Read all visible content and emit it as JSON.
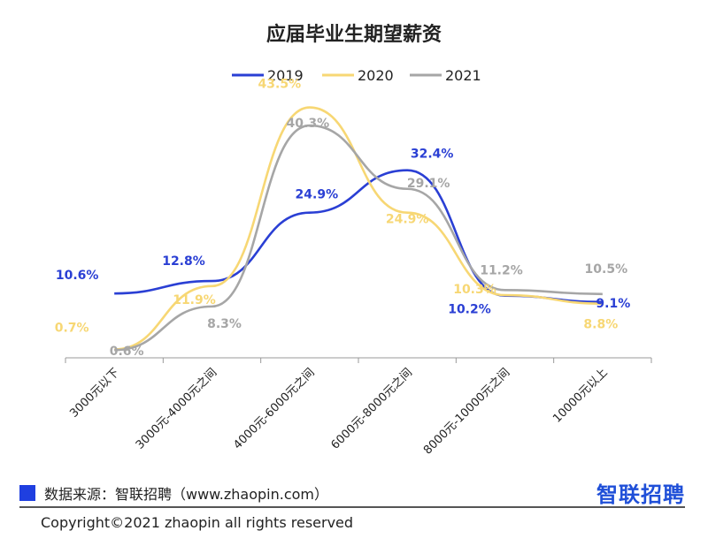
{
  "chart_data": {
    "type": "line",
    "title": "应届毕业生期望薪资",
    "categories": [
      "3000元以下",
      "3000元-4000元之间",
      "4000元-6000元之间",
      "6000元-8000元之间",
      "8000元-10000元之间",
      "10000元以上"
    ],
    "series": [
      {
        "name": "2019",
        "color": "#2a3fd4",
        "values": [
          10.6,
          12.8,
          24.9,
          32.4,
          10.2,
          9.1
        ],
        "labels": [
          "10.6%",
          "12.8%",
          "24.9%",
          "32.4%",
          "10.2%",
          "9.1%"
        ]
      },
      {
        "name": "2020",
        "color": "#f7d774",
        "values": [
          0.7,
          11.9,
          43.5,
          24.9,
          10.3,
          8.8
        ],
        "labels": [
          "0.7%",
          "11.9%",
          "43.5%",
          "24.9%",
          "10.3%",
          "8.8%"
        ]
      },
      {
        "name": "2021",
        "color": "#a6a6a6",
        "values": [
          0.6,
          8.3,
          40.3,
          29.1,
          11.2,
          10.5
        ],
        "labels": [
          "0.6%",
          "8.3%",
          "40.3%",
          "29.1%",
          "11.2%",
          "10.5%"
        ]
      }
    ],
    "ylim": [
      0,
      50
    ],
    "grid": false,
    "legend": "top-center",
    "xlabel": "",
    "ylabel": ""
  },
  "source": "数据来源：智联招聘（www.zhaopin.com）",
  "brand": "智联招聘",
  "copyright": "Copyright©2021 zhaopin all rights reserved",
  "colors": {
    "source_square": "#1f3fe0",
    "brand": "#1f4fd8"
  }
}
